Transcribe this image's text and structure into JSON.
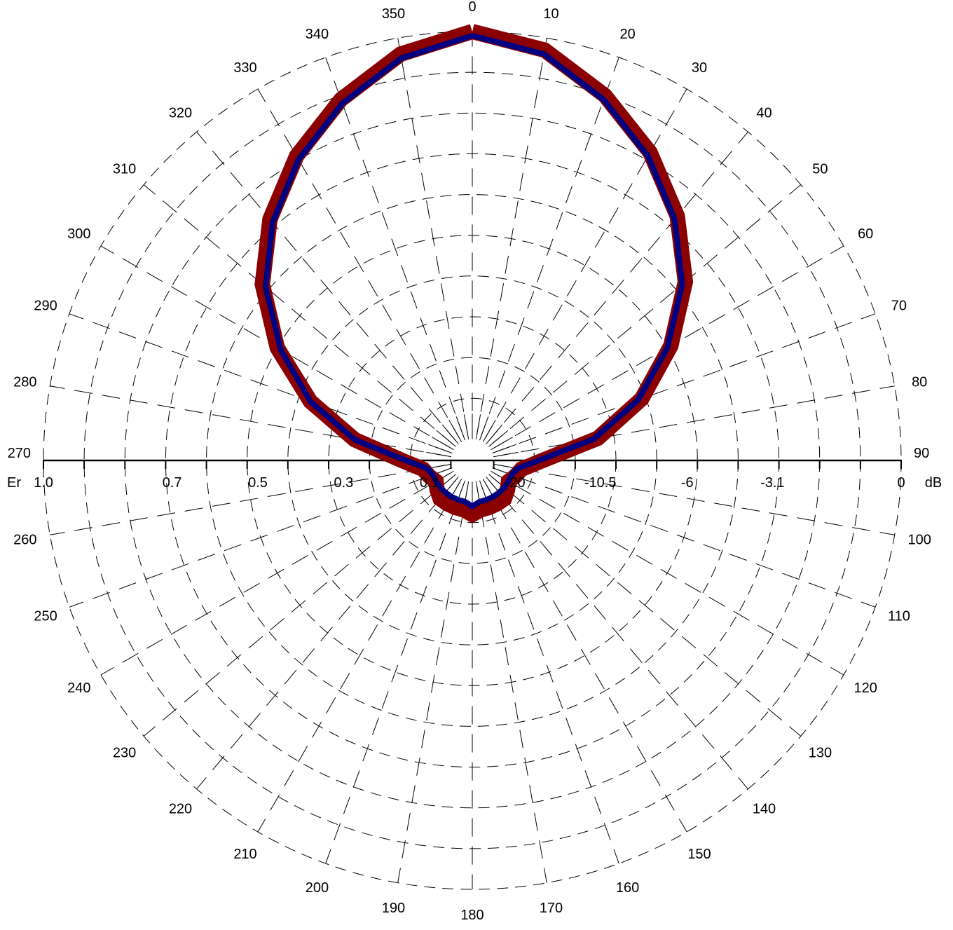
{
  "chart_data": {
    "type": "polar",
    "angle_labels": [
      "0",
      "10",
      "20",
      "30",
      "40",
      "50",
      "60",
      "70",
      "80",
      "90",
      "100",
      "110",
      "120",
      "130",
      "140",
      "150",
      "160",
      "170",
      "180",
      "190",
      "200",
      "210",
      "220",
      "230",
      "240",
      "250",
      "260",
      "270",
      "280",
      "290",
      "300",
      "310",
      "320",
      "330",
      "340",
      "350"
    ],
    "angle_unit": "deg",
    "radial_left_label": "Er",
    "radial_left_ticks": [
      {
        "label": "1.0",
        "value": 1.0
      },
      {
        "label": "0.7",
        "value": 0.7
      },
      {
        "label": "0.5",
        "value": 0.5
      },
      {
        "label": "0.3",
        "value": 0.3
      },
      {
        "label": "0.1",
        "value": 0.1
      }
    ],
    "radial_right_unit": "dB",
    "radial_right_ticks": [
      {
        "label": "-20",
        "value": -20
      },
      {
        "label": "-10.5",
        "value": -10.5
      },
      {
        "label": "-6",
        "value": -6
      },
      {
        "label": "-3.1",
        "value": -3.1
      },
      {
        "label": "0",
        "value": 0
      }
    ],
    "r_range_norm": [
      0,
      1
    ],
    "inner_radius_norm": 0.05,
    "grid": true,
    "series": [
      {
        "color": "#8b0000",
        "angles": [
          0,
          10,
          20,
          30,
          40,
          50,
          60,
          70,
          80,
          90,
          100,
          110,
          120,
          130,
          140,
          150,
          160,
          170,
          180,
          190,
          200,
          210,
          220,
          230,
          240,
          250,
          260,
          270,
          280,
          290,
          300,
          310,
          320,
          330,
          340,
          350,
          360
        ],
        "r": [
          1.0,
          0.97,
          0.9,
          0.82,
          0.73,
          0.63,
          0.51,
          0.39,
          0.26,
          0.12,
          0.07,
          0.06,
          0.05,
          0.06,
          0.07,
          0.07,
          0.07,
          0.07,
          0.08,
          0.07,
          0.07,
          0.07,
          0.07,
          0.06,
          0.05,
          0.06,
          0.07,
          0.12,
          0.24,
          0.37,
          0.5,
          0.62,
          0.72,
          0.81,
          0.89,
          0.96,
          1.0
        ]
      },
      {
        "color": "#000080",
        "angles": [
          0,
          10,
          20,
          30,
          40,
          50,
          60,
          70,
          80,
          90,
          100,
          110,
          120,
          130,
          140,
          150,
          160,
          170,
          180,
          190,
          200,
          210,
          220,
          230,
          240,
          250,
          260,
          270,
          280,
          290,
          300,
          310,
          320,
          330,
          340,
          350,
          360
        ],
        "r": [
          0.99,
          0.96,
          0.89,
          0.81,
          0.72,
          0.62,
          0.5,
          0.38,
          0.25,
          0.11,
          0.06,
          0.05,
          0.05,
          0.05,
          0.05,
          0.05,
          0.05,
          0.05,
          0.06,
          0.05,
          0.05,
          0.05,
          0.05,
          0.05,
          0.05,
          0.05,
          0.06,
          0.11,
          0.24,
          0.37,
          0.49,
          0.61,
          0.71,
          0.8,
          0.88,
          0.95,
          0.99
        ]
      }
    ]
  }
}
